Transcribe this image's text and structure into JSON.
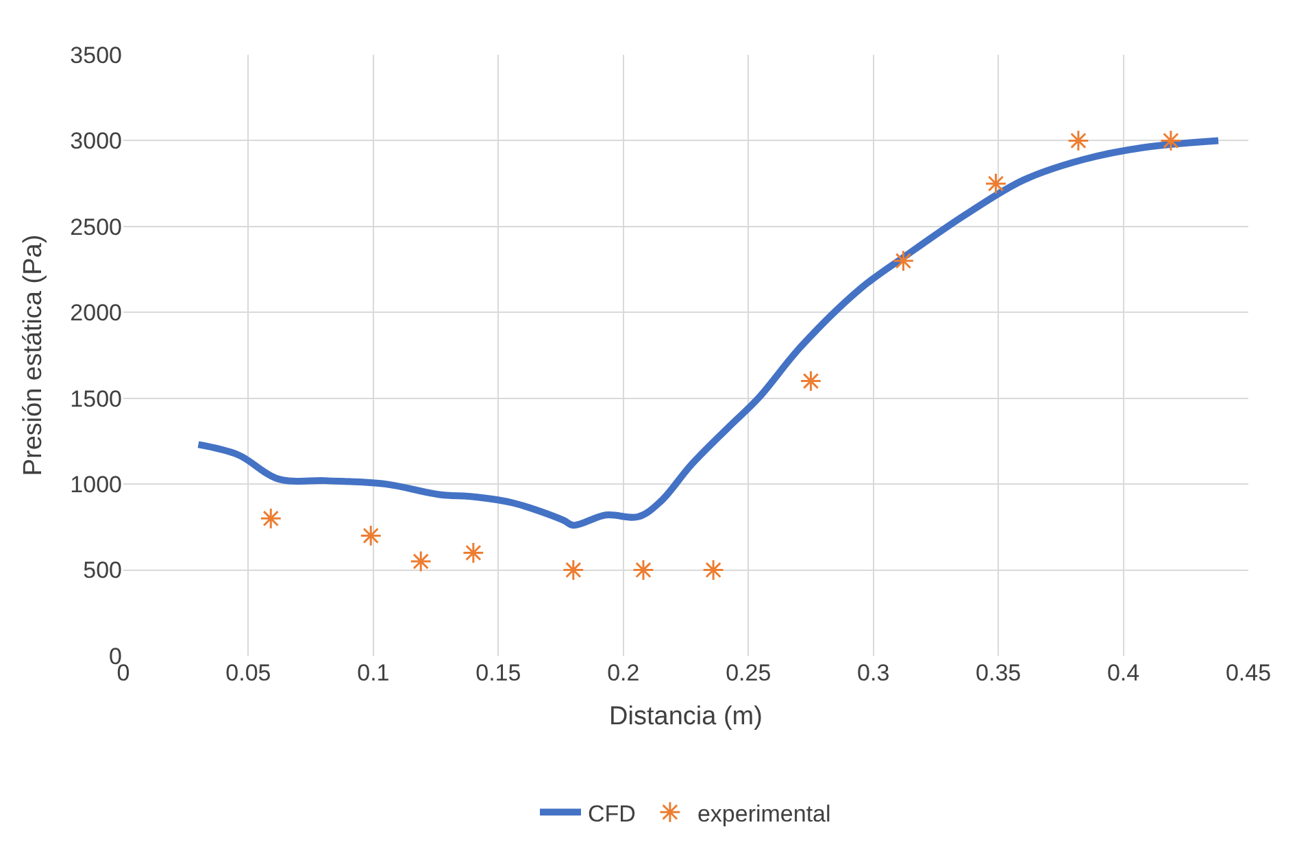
{
  "chart_data": {
    "type": "line",
    "xlabel": "Distancia (m)",
    "ylabel": "Presión estática (Pa)",
    "xlim": [
      0,
      0.45
    ],
    "xticks": [
      0,
      0.05,
      0.1,
      0.15,
      0.2,
      0.25,
      0.3,
      0.35,
      0.4,
      0.45
    ],
    "ylim": [
      0,
      3500
    ],
    "yticks": [
      0,
      500,
      1000,
      1500,
      2000,
      2500,
      3000,
      3500
    ],
    "grid": true,
    "legend": "bottom",
    "series": [
      {
        "name": "CFD",
        "color": "#4472c4",
        "marker": "none",
        "line_style": "solid",
        "x": [
          0.03,
          0.046,
          0.062,
          0.081,
          0.105,
          0.126,
          0.141,
          0.156,
          0.176,
          0.18,
          0.193,
          0.206,
          0.215,
          0.227,
          0.242,
          0.254,
          0.271,
          0.295,
          0.313,
          0.337,
          0.36,
          0.384,
          0.408,
          0.438
        ],
        "values": [
          1230,
          1170,
          1030,
          1020,
          1000,
          940,
          925,
          890,
          790,
          760,
          820,
          810,
          900,
          1110,
          1330,
          1500,
          1800,
          2140,
          2330,
          2570,
          2770,
          2890,
          2960,
          3000
        ]
      },
      {
        "name": "experimental",
        "type": "scatter",
        "color": "#ed7d31",
        "marker": "cross",
        "x": [
          0.059,
          0.099,
          0.119,
          0.14,
          0.18,
          0.208,
          0.236,
          0.275,
          0.312,
          0.349,
          0.382,
          0.419
        ],
        "values": [
          800,
          700,
          550,
          600,
          500,
          500,
          500,
          1600,
          2300,
          2750,
          3000,
          3000
        ]
      }
    ]
  }
}
